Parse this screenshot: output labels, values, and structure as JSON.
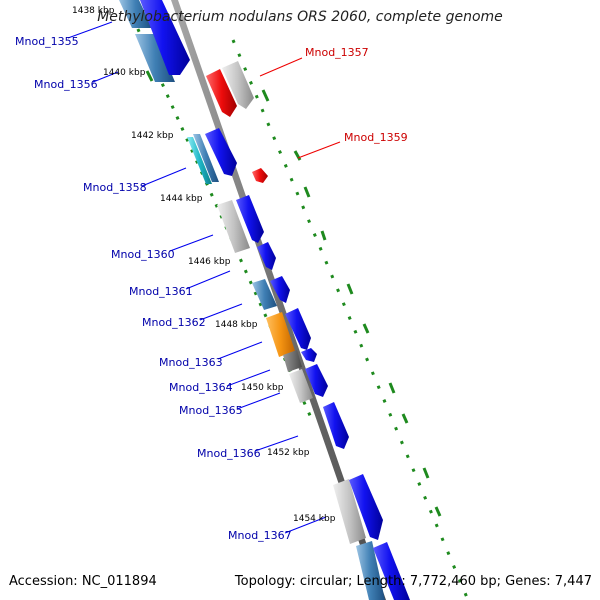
{
  "title": "Methylobacterium nodulans ORS 2060, complete genome",
  "footer": {
    "accession": "Accession: NC_011894",
    "summary": "Topology: circular; Length: 7,772,460 bp; Genes: 7,447"
  },
  "colors": {
    "backbone": "#7a7a7a",
    "gc_ticks": "#1e8a1e",
    "cds_forward": "#1010e8",
    "cds_reverse": "#3f7fb4",
    "grey_gene": "#bdbdbd",
    "rna_red": "#e01010",
    "orange_gene": "#f09018",
    "cyan_gene": "#20b8c8",
    "label_blue": "#0000aa",
    "label_red": "#cc0000"
  },
  "kbp_labels": [
    "1438 kbp",
    "1440 kbp",
    "1442 kbp",
    "1444 kbp",
    "1446 kbp",
    "1448 kbp",
    "1450 kbp",
    "1452 kbp",
    "1454 kbp"
  ],
  "gene_labels": {
    "Mnod_1355": "Mnod_1355",
    "Mnod_1356": "Mnod_1356",
    "Mnod_1357": "Mnod_1357",
    "Mnod_1358": "Mnod_1358",
    "Mnod_1359": "Mnod_1359",
    "Mnod_1360": "Mnod_1360",
    "Mnod_1361": "Mnod_1361",
    "Mnod_1362": "Mnod_1362",
    "Mnod_1363": "Mnod_1363",
    "Mnod_1364": "Mnod_1364",
    "Mnod_1365": "Mnod_1365",
    "Mnod_1366": "Mnod_1366",
    "Mnod_1367": "Mnod_1367"
  }
}
